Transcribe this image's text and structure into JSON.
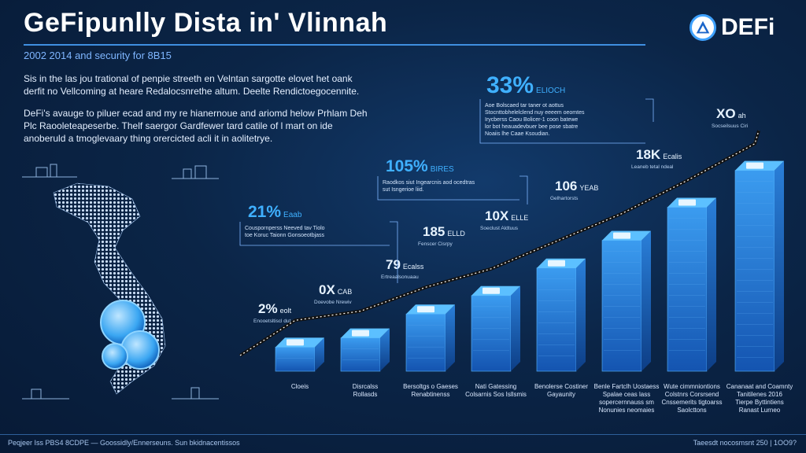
{
  "header": {
    "title": "GeFipunlly Dista in' Vlinnah",
    "subtitle": "2002 2014 and security for 8B15",
    "brand": "DEFi"
  },
  "intro": {
    "paragraph1": "Sis in the las jou trational of penpie streeth en Velntan sargotte elovet het oank derfit no Vellcoming at heare Redalocsnrethe altum. Deelte Rendictoegocennite.",
    "paragraph2": "DeFi's avauge to piluer ecad and my re hianernoue and ariomd helow Prhlam Deh Plc Raooleteapeserbe. Thelf saergor Gardfewer tard catile of l mart on ide anoberuld a tmoglevaary thing orercicted acli it in aolitetrye."
  },
  "chart_data": {
    "type": "bar",
    "title": "GeFipunlly Dista in' Vlinnah",
    "subtitle": "2002 2014 and security for 8B15",
    "categories": [
      [
        "Cloeis"
      ],
      [
        "Disrcalss",
        "Rollasds"
      ],
      [
        "Bersoltgs o Gaeses",
        "Renabtinenss"
      ],
      [
        "Nati Gatessing",
        "Colsarnis Sos Isllsmis"
      ],
      [
        "Benolerse Costiner",
        "Gayaunity"
      ],
      [
        "Benle Fartclh Uostaess",
        "Spalae ceas lass",
        "sopercernnauss sm",
        "Nonunies neomaies"
      ],
      [
        "Wute cimmniontions",
        "Colstnrs Corsrsend",
        "Cnssemerits tigtoarss",
        "Saolcttons"
      ],
      [
        "Cananaat and Coamnty",
        "Tanitilenes 2016",
        "Tierpe  Byttintiens",
        "Ranast Lurneo"
      ]
    ],
    "values": [
      2,
      7,
      20,
      30,
      45,
      60,
      78,
      98
    ],
    "ylim": [
      0,
      100
    ],
    "trend_labels": [
      {
        "big": "2%",
        "small": "eolt",
        "desc": [
          "Enooetsltiscl dut"
        ]
      },
      {
        "big": "0X",
        "small": "CAB",
        "desc": [
          "Doevobe Nrewiv"
        ]
      },
      {
        "big": "79",
        "small": "Ecalss",
        "desc": [
          "Ertreaalsonuaau"
        ]
      },
      {
        "big": "185",
        "small": "ELLD",
        "desc": [
          "Fenscer Cisrpy"
        ]
      },
      {
        "big": "10X",
        "small": "ELLE",
        "desc": [
          "Soeclust Aldtuus"
        ]
      },
      {
        "big": "106",
        "small": "YEAB",
        "desc": [
          "Gelhartorsts"
        ]
      },
      {
        "big": "18K",
        "small": "Ecalis",
        "desc": [
          "Leaneb tetal ndeal"
        ]
      },
      {
        "big": "XO",
        "small": "ah",
        "desc": [
          "Socseilsuus Ciri"
        ]
      }
    ],
    "callouts": [
      {
        "big": "21%",
        "small": "Eaab",
        "lines": [
          "Couspornperss Neeved tav Tiolo",
          "toe Koruc Taionn Gonsoeotbjass"
        ]
      },
      {
        "big": "105%",
        "small": "BIRES",
        "lines": [
          "Raodkos siut Ingearcnis aod ocedtras",
          "sut Isngerioe liid."
        ]
      },
      {
        "big": "33%",
        "small": "ELIOCH",
        "lines": [
          "Aoe Bolscaed tar taner ot aottus",
          "Stocnttobhelelclend nuy eeeem oeomtes",
          "Irycberss Caou Bolicer-1 coon batewe",
          "lor bot heauadevbuer bee pose sbatre",
          "Noaiis lhe Caae Ksoudian."
        ]
      }
    ]
  },
  "footer": {
    "left": "Peqjeer Iss PBS4 8CDPE  —  Goossidly/Ennerseuns. Sun bkidnacentissos",
    "right": "Taeesdt nocosmsnt 250 | 1OO9?"
  },
  "colors": {
    "accent": "#3fa2ff",
    "background": "#0b2547",
    "bar_top": "#5cc0ff",
    "bar_side": "#1c6fd6",
    "trend_line": "#111111"
  }
}
